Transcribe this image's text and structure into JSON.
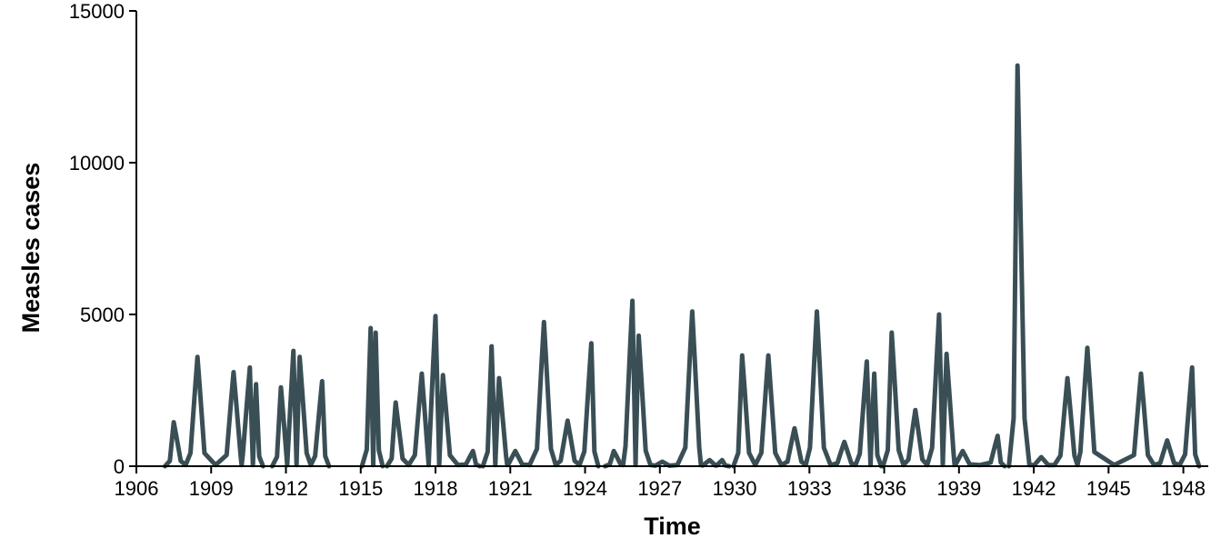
{
  "chart_data": {
    "type": "line",
    "title": "",
    "xlabel": "Time",
    "ylabel": "Measles cases",
    "xlim": [
      1906,
      1949
    ],
    "ylim": [
      0,
      15000
    ],
    "x_ticks": [
      1906,
      1909,
      1912,
      1915,
      1918,
      1921,
      1924,
      1927,
      1930,
      1933,
      1936,
      1939,
      1942,
      1945,
      1948
    ],
    "y_ticks": [
      0,
      5000,
      10000,
      15000
    ],
    "grid": false,
    "legend": "none",
    "line_color": "#3a4f55",
    "series": [
      {
        "segments": [
          {
            "peaks": [
              [
                1907.5,
                1450
              ],
              [
                1908.45,
                3600
              ],
              [
                1909.9,
                3100
              ],
              [
                1910.55,
                3250
              ],
              [
                1910.8,
                2700
              ]
            ]
          },
          {
            "peaks": [
              [
                1911.8,
                2600
              ],
              [
                1912.3,
                3800
              ],
              [
                1912.55,
                3600
              ],
              [
                1913.45,
                2800
              ]
            ]
          },
          {
            "peaks": [
              [
                1915.4,
                4550
              ],
              [
                1915.6,
                4400
              ]
            ]
          },
          {
            "peaks": [
              [
                1916.4,
                2100
              ],
              [
                1917.45,
                3050
              ],
              [
                1918.0,
                4950
              ],
              [
                1918.3,
                3000
              ],
              [
                1919.5,
                500
              ]
            ]
          },
          {
            "peaks": [
              [
                1920.25,
                3950
              ],
              [
                1920.55,
                2900
              ],
              [
                1921.2,
                500
              ],
              [
                1922.35,
                4750
              ],
              [
                1923.3,
                1500
              ],
              [
                1924.25,
                4050
              ]
            ]
          },
          {
            "peaks": [
              [
                1925.15,
                500
              ],
              [
                1925.9,
                5450
              ],
              [
                1926.15,
                4300
              ],
              [
                1927.1,
                150
              ],
              [
                1928.3,
                5100
              ],
              [
                1929.0,
                200
              ],
              [
                1929.5,
                200
              ]
            ]
          },
          {
            "peaks": [
              [
                1930.3,
                3650
              ],
              [
                1931.35,
                3650
              ],
              [
                1932.4,
                1250
              ],
              [
                1933.3,
                5100
              ],
              [
                1934.4,
                800
              ],
              [
                1935.3,
                3450
              ],
              [
                1935.6,
                3050
              ]
            ]
          },
          {
            "peaks": [
              [
                1936.3,
                4400
              ],
              [
                1937.25,
                1850
              ],
              [
                1938.2,
                5000
              ],
              [
                1938.5,
                3700
              ],
              [
                1939.15,
                500
              ],
              [
                1940.55,
                1000
              ]
            ]
          },
          {
            "peaks": [
              [
                1941.35,
                13200
              ],
              [
                1942.3,
                300
              ],
              [
                1943.35,
                2900
              ],
              [
                1944.15,
                3900
              ],
              [
                1946.3,
                3050
              ],
              [
                1947.35,
                850
              ],
              [
                1948.35,
                3250
              ]
            ]
          }
        ]
      }
    ]
  }
}
